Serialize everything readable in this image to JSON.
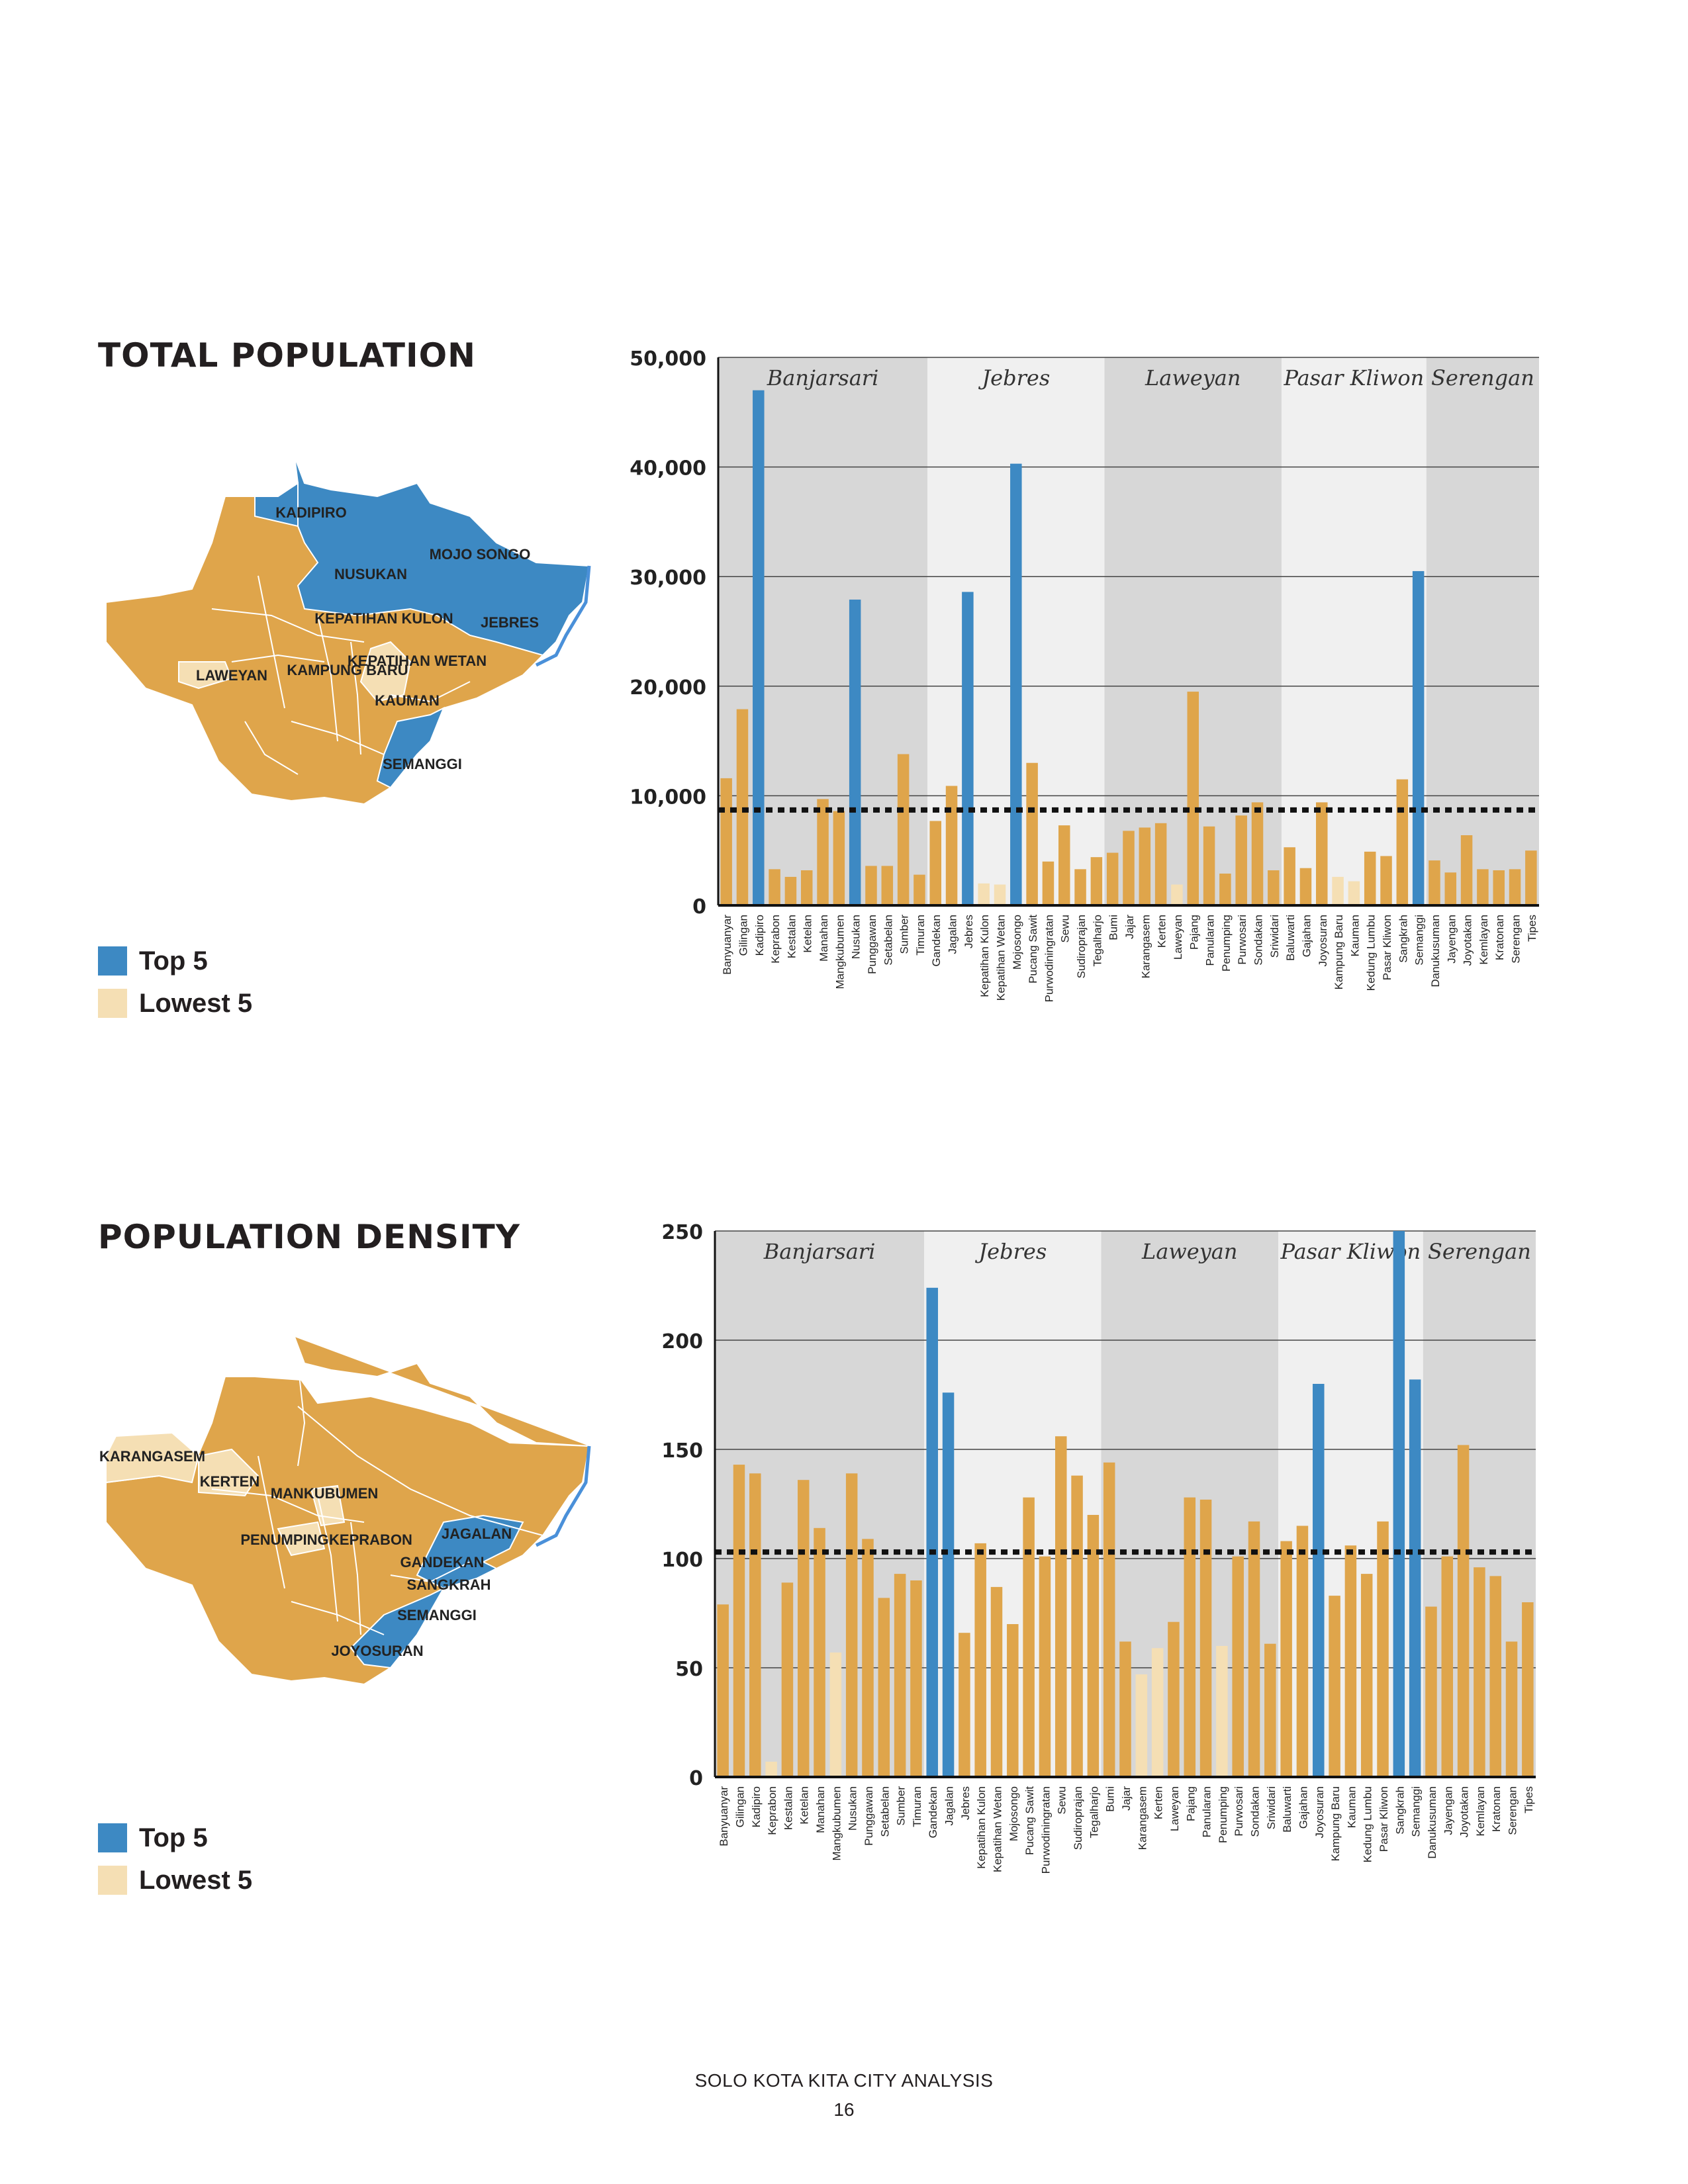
{
  "colors": {
    "top": "#3d89c3",
    "regular": "#dfa54b",
    "lowest": "#f5dfb4",
    "band_dark": "#d7d7d7",
    "band_light": "#f0f0f0",
    "grid": "#444444",
    "map_border": "#ffffff",
    "river": "#4a90d9"
  },
  "footer": {
    "title": "SOLO KOTA KITA CITY ANALYSIS",
    "page": "16"
  },
  "sections": [
    {
      "title": "TOTAL POPULATION",
      "legend": {
        "top_label": "Top 5",
        "lowest_label": "Lowest 5"
      },
      "map_labels": {
        "top": [
          "KADIPIRO",
          "MOJO SONGO",
          "NUSUKAN",
          "JEBRES",
          "SEMANGGI"
        ],
        "lowest": [
          "LAWEYAN",
          "KEPATIHAN KULON",
          "KEPATIHAN WETAN",
          "KAMPUNG BARU",
          "KAUMAN"
        ]
      },
      "chart_data": {
        "type": "bar",
        "ylim": [
          0,
          50000
        ],
        "yticks": [
          "0",
          "10,000",
          "20,000",
          "30,000",
          "40,000",
          "50,000"
        ],
        "ytick_values": [
          0,
          10000,
          20000,
          30000,
          40000,
          50000
        ],
        "average_line": 8700,
        "groups": [
          {
            "name": "Banjarsari",
            "start": 0,
            "end": 13
          },
          {
            "name": "Jebres",
            "start": 13,
            "end": 24
          },
          {
            "name": "Laweyan",
            "start": 24,
            "end": 35
          },
          {
            "name": "Pasar Kliwon",
            "start": 35,
            "end": 44
          },
          {
            "name": "Serengan",
            "start": 44,
            "end": 51
          }
        ],
        "categories": [
          "Banyuanyar",
          "Gilingan",
          "Kadipiro",
          "Keprabon",
          "Kestalan",
          "Ketelan",
          "Manahan",
          "Mangkubumen",
          "Nusukan",
          "Punggawan",
          "Setabelan",
          "Sumber",
          "Timuran",
          "Gandekan",
          "Jagalan",
          "Jebres",
          "Kepatihan Kulon",
          "Kepatihan Wetan",
          "Mojosongo",
          "Pucang Sawit",
          "Purwodiningratan",
          "Sewu",
          "Sudiroprajan",
          "Tegalharjo",
          "Bumi",
          "Jajar",
          "Karangasem",
          "Kerten",
          "Laweyan",
          "Pajang",
          "Panularan",
          "Penumping",
          "Purwosari",
          "Sondakan",
          "Sriwidari",
          "Baluwarti",
          "Gajahan",
          "Joyosuran",
          "Kampung Baru",
          "Kauman",
          "Kedung Lumbu",
          "Pasar Kliwon",
          "Sangkrah",
          "Semanggi",
          "Danukusuman",
          "Jayengan",
          "Joyotakan",
          "Kemlayan",
          "Kratonan",
          "Serengan",
          "Tipes"
        ],
        "values": [
          11600,
          17900,
          47000,
          3300,
          2600,
          3200,
          9700,
          8600,
          27900,
          3600,
          3600,
          13800,
          2800,
          7700,
          10900,
          28600,
          2000,
          1900,
          40300,
          13000,
          4000,
          7300,
          3300,
          4400,
          4800,
          6800,
          7100,
          7500,
          1900,
          19500,
          7200,
          2900,
          8200,
          9400,
          3200,
          5300,
          3400,
          9400,
          2600,
          2200,
          4900,
          4500,
          11500,
          30500,
          4100,
          3000,
          6400,
          3300,
          3200,
          3300,
          5000
        ],
        "highlight": [
          "regular",
          "regular",
          "top",
          "regular",
          "regular",
          "regular",
          "regular",
          "regular",
          "top",
          "regular",
          "regular",
          "regular",
          "regular",
          "regular",
          "regular",
          "top",
          "lowest",
          "lowest",
          "top",
          "regular",
          "regular",
          "regular",
          "regular",
          "regular",
          "regular",
          "regular",
          "regular",
          "regular",
          "lowest",
          "regular",
          "regular",
          "regular",
          "regular",
          "regular",
          "regular",
          "regular",
          "regular",
          "regular",
          "lowest",
          "lowest",
          "regular",
          "regular",
          "regular",
          "top",
          "regular",
          "regular",
          "regular",
          "regular",
          "regular",
          "regular",
          "regular"
        ]
      }
    },
    {
      "title": "POPULATION DENSITY",
      "legend": {
        "top_label": "Top 5",
        "lowest_label": "Lowest 5"
      },
      "map_labels": {
        "top": [
          "JAGALAN",
          "GANDEKAN",
          "SANGKRAH",
          "SEMANGGI",
          "JOYOSURAN"
        ],
        "lowest": [
          "KARANGASEM",
          "KERTEN",
          "MANKUBUMEN",
          "PENUMPING",
          "KEPRABON"
        ]
      },
      "chart_data": {
        "type": "bar",
        "ylim": [
          0,
          250
        ],
        "yticks": [
          "0",
          "50",
          "100",
          "150",
          "200",
          "250"
        ],
        "ytick_values": [
          0,
          50,
          100,
          150,
          200,
          250
        ],
        "average_line": 103,
        "groups": [
          {
            "name": "Banjarsari",
            "start": 0,
            "end": 13
          },
          {
            "name": "Jebres",
            "start": 13,
            "end": 24
          },
          {
            "name": "Laweyan",
            "start": 24,
            "end": 35
          },
          {
            "name": "Pasar Kliwon",
            "start": 35,
            "end": 44
          },
          {
            "name": "Serengan",
            "start": 44,
            "end": 51
          }
        ],
        "categories": [
          "Banyuanyar",
          "Gilingan",
          "Kadipiro",
          "Keprabon",
          "Kestalan",
          "Ketelan",
          "Manahan",
          "Mangkubumen",
          "Nusukan",
          "Punggawan",
          "Setabelan",
          "Sumber",
          "Timuran",
          "Gandekan",
          "Jagalan",
          "Jebres",
          "Kepatihan Kulon",
          "Kepatihan Wetan",
          "Mojosongo",
          "Pucang Sawit",
          "Purwodiningratan",
          "Sewu",
          "Sudiroprajan",
          "Tegalharjo",
          "Bumi",
          "Jajar",
          "Karangasem",
          "Kerten",
          "Laweyan",
          "Pajang",
          "Panularan",
          "Penumping",
          "Purwosari",
          "Sondakan",
          "Sriwidari",
          "Baluwarti",
          "Gajahan",
          "Joyosuran",
          "Kampung Baru",
          "Kauman",
          "Kedung Lumbu",
          "Pasar Kliwon",
          "Sangkrah",
          "Semanggi",
          "Danukusuman",
          "Jayengan",
          "Joyotakan",
          "Kemlayan",
          "Kratonan",
          "Serengan",
          "Tipes"
        ],
        "values": [
          79,
          143,
          139,
          7,
          89,
          136,
          114,
          57,
          139,
          109,
          82,
          93,
          90,
          224,
          176,
          66,
          107,
          87,
          70,
          128,
          101,
          156,
          138,
          120,
          144,
          62,
          47,
          59,
          71,
          128,
          127,
          60,
          101,
          117,
          61,
          108,
          115,
          180,
          83,
          106,
          93,
          117,
          250,
          182,
          78,
          101,
          152,
          96,
          92,
          62,
          80
        ],
        "highlight": [
          "regular",
          "regular",
          "regular",
          "lowest",
          "regular",
          "regular",
          "regular",
          "lowest",
          "regular",
          "regular",
          "regular",
          "regular",
          "regular",
          "top",
          "top",
          "regular",
          "regular",
          "regular",
          "regular",
          "regular",
          "regular",
          "regular",
          "regular",
          "regular",
          "regular",
          "regular",
          "lowest",
          "lowest",
          "regular",
          "regular",
          "regular",
          "lowest",
          "regular",
          "regular",
          "regular",
          "regular",
          "regular",
          "top",
          "regular",
          "regular",
          "regular",
          "regular",
          "top",
          "top",
          "regular",
          "regular",
          "regular",
          "regular",
          "regular",
          "regular",
          "regular"
        ]
      }
    }
  ]
}
